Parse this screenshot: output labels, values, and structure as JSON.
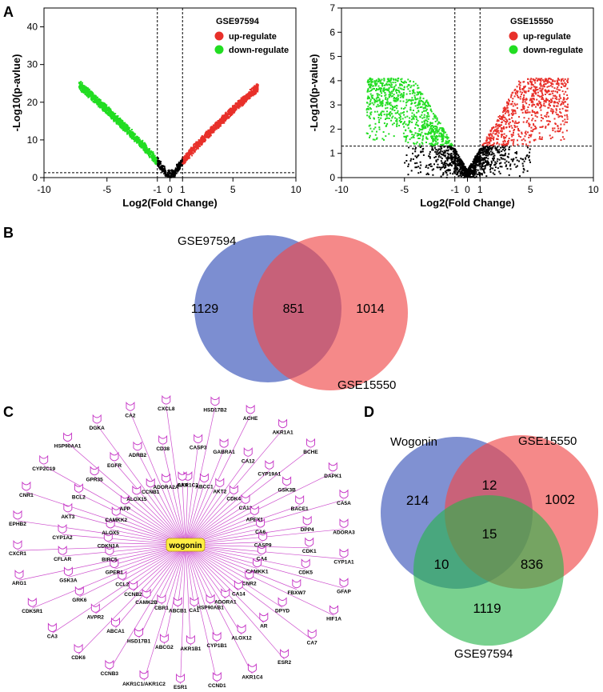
{
  "panels": {
    "A": "A",
    "B": "B",
    "C": "C",
    "D": "D"
  },
  "colors": {
    "up": "#e8302a",
    "down": "#22dd22",
    "ns": "#000000",
    "venn_blue": "#4a62bf",
    "venn_red": "#f04a4a",
    "venn_green": "#27b54a",
    "node": "#c42fc4",
    "hub": "#ffee44"
  },
  "chart_data": [
    {
      "type": "scatter",
      "title": "GSE97594",
      "xlabel": "Log2(Fold Change)",
      "ylabel": "-Log10(p-avlue)",
      "xlim": [
        -10,
        10
      ],
      "ylim": [
        0,
        45
      ],
      "xticks": [
        "-10",
        "-5",
        "-1",
        "0",
        "1",
        "5",
        "10"
      ],
      "xtick_values": [
        -10,
        -5,
        -1,
        0,
        1,
        5,
        10
      ],
      "yticks": [
        "0",
        "10",
        "20",
        "30",
        "40"
      ],
      "ytick_values": [
        0,
        10,
        20,
        30,
        40
      ],
      "vlines": [
        -1,
        1
      ],
      "hline": 1.3,
      "legend": {
        "position": "top-right",
        "entries": [
          {
            "name": "up-regulate",
            "color": "#e8302a"
          },
          {
            "name": "down-regulate",
            "color": "#22dd22"
          }
        ]
      },
      "point_cloud": {
        "shape": "v-curve",
        "x_min": -7.2,
        "x_max": 7,
        "y_max": 24.5,
        "up_threshold": 1,
        "down_threshold": -1
      }
    },
    {
      "type": "scatter",
      "title": "GSE15550",
      "xlabel": "Log2(Fold Change)",
      "ylabel": "-Log10(p-value)",
      "xlim": [
        -10,
        10
      ],
      "ylim": [
        0,
        7
      ],
      "xticks": [
        "-10",
        "-5",
        "-1",
        "0",
        "1",
        "5",
        "10"
      ],
      "xtick_values": [
        -10,
        -5,
        -1,
        0,
        1,
        5,
        10
      ],
      "yticks": [
        "0",
        "1",
        "2",
        "3",
        "4",
        "5",
        "6",
        "7"
      ],
      "ytick_values": [
        0,
        1,
        2,
        3,
        4,
        5,
        6,
        7
      ],
      "vlines": [
        -1,
        1
      ],
      "hline": 1.3,
      "legend": {
        "position": "top-right",
        "entries": [
          {
            "name": "up-regulate",
            "color": "#e8302a"
          },
          {
            "name": "down-regulate",
            "color": "#22dd22"
          }
        ]
      },
      "point_cloud": {
        "shape": "v-fan",
        "x_min": -8,
        "x_max": 8,
        "y_max": 4.1,
        "up_threshold": 1,
        "down_threshold": -1
      }
    },
    {
      "type": "venn",
      "sets": [
        "GSE97594",
        "GSE15550"
      ],
      "regions": {
        "GSE97594_only": "1129",
        "both": "851",
        "GSE15550_only": "1014"
      }
    },
    {
      "type": "network",
      "hub": "wogonin",
      "nodes": [
        "AKR1C3",
        "CASP3",
        "HSD17B2",
        "ABCC1",
        "GABRA1",
        "ACHE",
        "AKT2",
        "CA12",
        "AKR1A1",
        "CDK4",
        "CYP19A1",
        "BCHE",
        "CA13",
        "GSK3B",
        "DAPK1",
        "APEX1",
        "BACE1",
        "CA5A",
        "CA6",
        "DPP4",
        "ADORA3",
        "CASP9",
        "CDK1",
        "CYP1A1",
        "CA4",
        "CDK5",
        "GFAP",
        "CAMKK1",
        "FBXW7",
        "HIF1A",
        "CNR2",
        "DPYD",
        "CA7",
        "CA14",
        "AR",
        "ESR2",
        "ADORA1",
        "ALOX12",
        "AKR1C4",
        "HSP90AB1",
        "CYP1B1",
        "CCND1",
        "CA1",
        "AKR1B1",
        "ESR1",
        "ABCB1",
        "ABCG2",
        "AKR1C1/AKR1C2",
        "CBR1",
        "HSD17B1",
        "CCNB3",
        "CAMK2B",
        "ABCA1",
        "CDK6",
        "CCNB2",
        "AVPR2",
        "CA3",
        "CCL2",
        "GRK6",
        "CDK5R1",
        "GPER1",
        "GSK3A",
        "ARG1",
        "BIRC5",
        "CFLAR",
        "CXCR1",
        "CDKN1A",
        "CYP1A2",
        "EPHB2",
        "ALOX5",
        "AKT3",
        "CNR1",
        "CAMKK2",
        "BCL2",
        "CYP2C19",
        "APP",
        "GPR35",
        "HSP90AA1",
        "ALOX15",
        "EGFR",
        "DGKA",
        "CCNB1",
        "ADRB2",
        "CA2",
        "ADORA2A",
        "CD38",
        "CXCL8",
        "CA9"
      ]
    },
    {
      "type": "venn",
      "sets": [
        "Wogonin",
        "GSE15550",
        "GSE97594"
      ],
      "regions": {
        "wogonin_only": "214",
        "wogonin_gse15550": "12",
        "gse15550_only": "1002",
        "all_three": "15",
        "wogonin_gse97594": "10",
        "gse15550_gse97594": "836",
        "gse97594_only": "1119"
      }
    }
  ]
}
